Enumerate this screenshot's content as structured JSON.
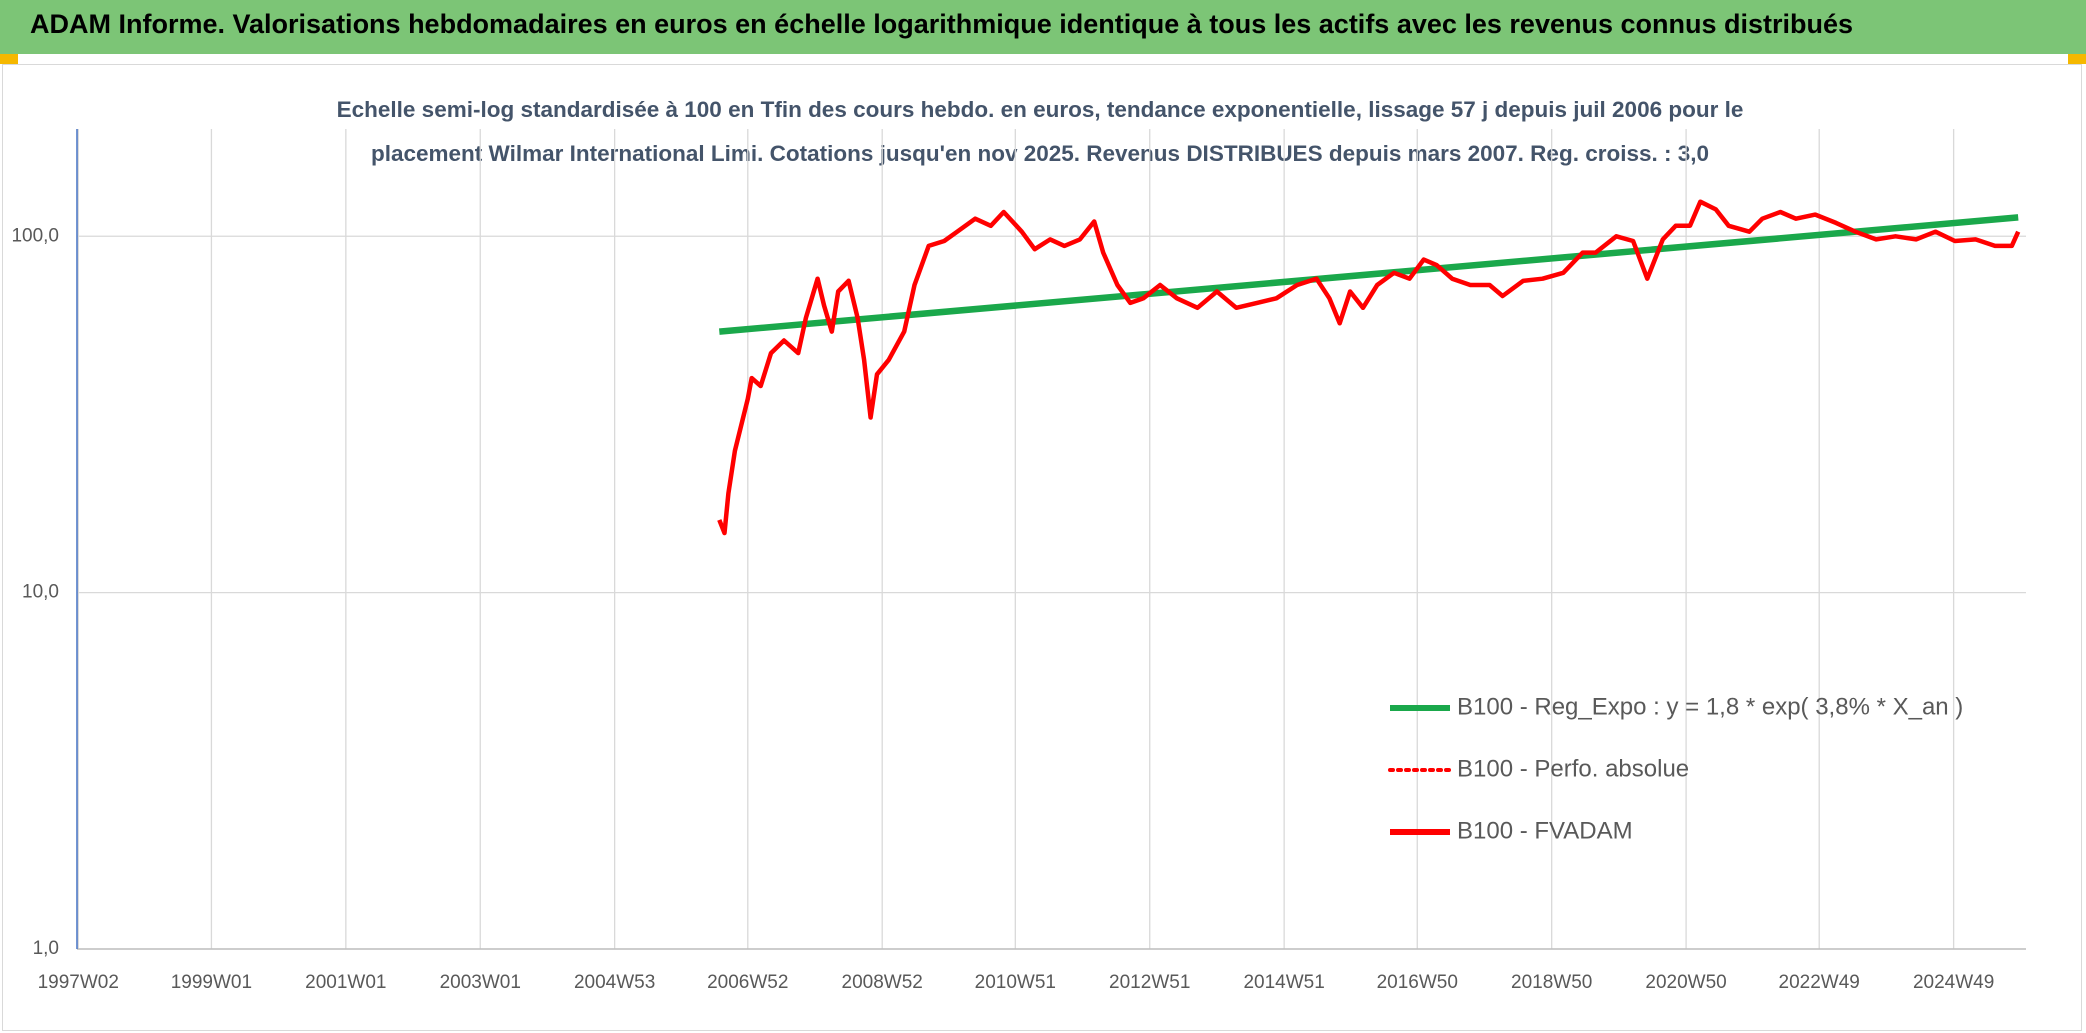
{
  "header": {
    "title": "ADAM Informe. Valorisations hebdomadaires en euros en échelle logarithmique identique à tous les actifs avec les revenus connus distribués"
  },
  "chart_data": {
    "type": "line",
    "subtitle": "Echelle semi-log standardisée à 100 en Tfin des cours hebdo. en euros, tendance exponentielle, lissage 57 j depuis juil 2006 pour le placement Wilmar International Limi. Cotations jusqu'en nov 2025. Revenus DISTRIBUES depuis mars 2007. Reg. croiss. : 3,0",
    "log_y": true,
    "grid": true,
    "legend": "lower-right",
    "xlim": [
      "1997W01",
      "2026W01"
    ],
    "xticks": [
      "1997W02",
      "1999W01",
      "2001W01",
      "2003W01",
      "2004W53",
      "2006W52",
      "2008W52",
      "2010W51",
      "2012W51",
      "2014W51",
      "2016W50",
      "2018W50",
      "2020W50",
      "2022W49",
      "2024W49"
    ],
    "ylim": [
      1,
      200
    ],
    "yticks": [
      {
        "value": 1,
        "label": "1,0"
      },
      {
        "value": 10,
        "label": "10,0"
      },
      {
        "value": 100,
        "label": "100,0"
      }
    ],
    "x": [
      "2006W30",
      "2006W34",
      "2006W37",
      "2006W42",
      "2006W52",
      "2007W03",
      "2007W10",
      "2007W18",
      "2007W28",
      "2007W39",
      "2007W45",
      "2008W02",
      "2008W07",
      "2008W13",
      "2008W18",
      "2008W26",
      "2008W33",
      "2008W38",
      "2008W43",
      "2008W48",
      "2009W05",
      "2009W17",
      "2009W25",
      "2009W36",
      "2009W48",
      "2010W06",
      "2010W20",
      "2010W32",
      "2010W42",
      "2011W04",
      "2011W14",
      "2011W26",
      "2011W37",
      "2011W49",
      "2012W08",
      "2012W15",
      "2012W26",
      "2012W36",
      "2012W46",
      "2013W07",
      "2013W20",
      "2013W36",
      "2013W51",
      "2014W14",
      "2014W30",
      "2014W45",
      "2015W09",
      "2015W24",
      "2015W34",
      "2015W42",
      "2015W50",
      "2016W08",
      "2016W19",
      "2016W32",
      "2016W44",
      "2017W03",
      "2017W13",
      "2017W25",
      "2017W39",
      "2018W02",
      "2018W12",
      "2018W28",
      "2018W43",
      "2019W07",
      "2019W22",
      "2019W32",
      "2019W48",
      "2020W09",
      "2020W20",
      "2020W32",
      "2020W42",
      "2021W01",
      "2021W09",
      "2021W21",
      "2021W31",
      "2021W47",
      "2022W05",
      "2022W19",
      "2022W31",
      "2022W46",
      "2023W10",
      "2023W25",
      "2023W41",
      "2024W04",
      "2024W20",
      "2024W35",
      "2024W50",
      "2025W14",
      "2025W29",
      "2025W42",
      "2025W47"
    ],
    "series": [
      {
        "name": "B100 - Reg_Expo : y = 1,8 * exp( 3,8% *  X_an )",
        "color": "#1aa84b",
        "x": [
          "2006W30",
          "2025W47"
        ],
        "values": [
          54,
          113
        ]
      },
      {
        "name": "B100 - Perfo. absolue",
        "color": "#ff0000",
        "dash": "dotted"
      },
      {
        "name": "B100 - FVADAM",
        "color": "#ff0000",
        "values": [
          16,
          14.7,
          19,
          25,
          35,
          40,
          38,
          47,
          51,
          47,
          59,
          76,
          64,
          54,
          70,
          75,
          59,
          45,
          31,
          41,
          45,
          54,
          73,
          94,
          97,
          103,
          112,
          107,
          117,
          103,
          92,
          98,
          94,
          98,
          110,
          90,
          73,
          65,
          67,
          73,
          67,
          63,
          70,
          63,
          65,
          67,
          73,
          76,
          67,
          57,
          70,
          63,
          73,
          79,
          76,
          86,
          83,
          76,
          73,
          73,
          68,
          75,
          76,
          79,
          90,
          90,
          100,
          97,
          76,
          98,
          107,
          107,
          125,
          119,
          107,
          103,
          112,
          117,
          112,
          115,
          109,
          103,
          98,
          100,
          98,
          103,
          97,
          98,
          94,
          94,
          103
        ]
      }
    ]
  }
}
